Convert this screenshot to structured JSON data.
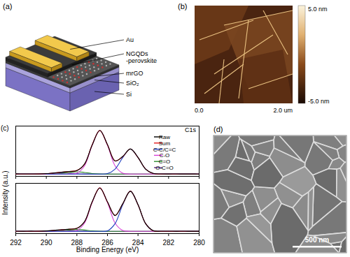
{
  "panel_labels": [
    "(a)",
    "(b)",
    "(c)",
    "(d)"
  ],
  "schematic": {
    "electrode": "Au",
    "film": [
      "NGQDs",
      "-perovskite"
    ],
    "channel": "mrGO",
    "oxide": "SiO₂",
    "substrate": "Si"
  },
  "afm_image": {
    "colorbar_top": "5.0 nm",
    "colorbar_bottom": "-5.0 nm",
    "axis_start": "0.0",
    "axis_end": "2.0 um"
  },
  "sem_image": {
    "scale_bar": "500 nm"
  },
  "xps": {
    "ylabel": "Intensity (a.u.)"
  },
  "chart_data": [
    {
      "type": "line",
      "annotation": "C1s",
      "x": [
        292,
        291.5,
        291,
        290.5,
        290,
        289.5,
        289,
        288.5,
        288,
        287.5,
        287,
        286.5,
        286,
        285.5,
        285,
        284.5,
        284,
        283.5,
        283,
        282.5,
        282,
        281.5,
        281,
        280.5,
        280
      ],
      "xlim": [
        292,
        280
      ],
      "xticks": [
        292,
        290,
        288,
        286,
        284,
        282,
        280
      ],
      "ylim": [
        -0.05,
        1.05
      ],
      "tick_labels": false,
      "legend": "top-right",
      "series": [
        {
          "name": "Raw",
          "color": "#000000",
          "values": [
            0.005,
            0.003,
            0.004,
            0.004,
            0.01,
            0.025,
            0.04,
            0.058,
            0.075,
            0.22,
            0.635,
            0.955,
            0.645,
            0.285,
            0.385,
            0.548,
            0.365,
            0.105,
            0.015,
            0.004,
            0.002,
            0.003,
            0.001,
            0.002,
            0.0
          ]
        },
        {
          "name": "Sum",
          "color": "#e41a1c",
          "values": [
            0,
            0,
            0,
            0.001,
            0.008,
            0.022,
            0.042,
            0.055,
            0.078,
            0.216,
            0.642,
            0.952,
            0.64,
            0.29,
            0.38,
            0.55,
            0.36,
            0.11,
            0.01,
            0,
            0,
            0,
            0,
            0,
            0
          ]
        },
        {
          "name": "C-C/C=C",
          "color": "#1f3fbf",
          "values": [
            0,
            0,
            0,
            0,
            0,
            0,
            0,
            0,
            0,
            0,
            0,
            0,
            0.01,
            0.11,
            0.36,
            0.55,
            0.36,
            0.11,
            0.01,
            0,
            0,
            0,
            0,
            0,
            0
          ]
        },
        {
          "name": "C-O",
          "color": "#d63fd6",
          "values": [
            0,
            0,
            0,
            0,
            0,
            0,
            0,
            0,
            0.02,
            0.18,
            0.63,
            0.95,
            0.63,
            0.18,
            0.02,
            0,
            0,
            0,
            0,
            0,
            0,
            0,
            0,
            0,
            0
          ]
        },
        {
          "name": "C=O",
          "color": "#2e8b2e",
          "values": [
            0,
            0,
            0,
            0,
            0,
            0.002,
            0.012,
            0.035,
            0.05,
            0.035,
            0.012,
            0.002,
            0,
            0,
            0,
            0,
            0,
            0,
            0,
            0,
            0,
            0,
            0,
            0,
            0
          ]
        },
        {
          "name": "O-C=O",
          "color": "#5b2c8f",
          "values": [
            0,
            0,
            0,
            0.001,
            0.008,
            0.02,
            0.03,
            0.02,
            0.008,
            0.001,
            0,
            0,
            0,
            0,
            0,
            0,
            0,
            0,
            0,
            0,
            0,
            0,
            0,
            0,
            0
          ]
        }
      ]
    },
    {
      "type": "line",
      "xlabel": "Binding Energy (eV)",
      "x": [
        292,
        291.5,
        291,
        290.5,
        290,
        289.5,
        289,
        288.5,
        288,
        287.5,
        287,
        286.5,
        286,
        285.5,
        285,
        284.5,
        284,
        283.5,
        283,
        282.5,
        282,
        281.5,
        281,
        280.5,
        280
      ],
      "xlim": [
        292,
        280
      ],
      "xticks": [
        292,
        290,
        288,
        286,
        284,
        282,
        280
      ],
      "ylim": [
        -0.05,
        1.05
      ],
      "tick_labels": "x",
      "series": [
        {
          "name": "Raw",
          "color": "#000000",
          "values": [
            0.004,
            0.002,
            0.005,
            0.003,
            0.009,
            0.021,
            0.037,
            0.047,
            0.064,
            0.212,
            0.645,
            0.948,
            0.646,
            0.345,
            0.605,
            0.876,
            0.585,
            0.165,
            0.014,
            0.003,
            0.004,
            0.002,
            0.003,
            0.001,
            0.002
          ]
        },
        {
          "name": "Sum",
          "color": "#e41a1c",
          "values": [
            0,
            0,
            0,
            0.001,
            0.007,
            0.019,
            0.035,
            0.045,
            0.067,
            0.209,
            0.64,
            0.952,
            0.64,
            0.35,
            0.6,
            0.88,
            0.58,
            0.17,
            0.01,
            0,
            0,
            0,
            0,
            0,
            0
          ]
        },
        {
          "name": "C-C/C=C",
          "color": "#1f3fbf",
          "values": [
            0,
            0,
            0,
            0,
            0,
            0,
            0,
            0,
            0,
            0,
            0,
            0,
            0.01,
            0.17,
            0.58,
            0.88,
            0.58,
            0.17,
            0.01,
            0,
            0,
            0,
            0,
            0,
            0
          ]
        },
        {
          "name": "C-O",
          "color": "#d63fd6",
          "values": [
            0,
            0,
            0,
            0,
            0,
            0,
            0,
            0,
            0.02,
            0.18,
            0.63,
            0.95,
            0.63,
            0.18,
            0.02,
            0,
            0,
            0,
            0,
            0,
            0,
            0,
            0,
            0,
            0
          ]
        },
        {
          "name": "C=O",
          "color": "#2e8b2e",
          "values": [
            0,
            0,
            0,
            0,
            0,
            0.002,
            0.01,
            0.028,
            0.04,
            0.028,
            0.01,
            0.002,
            0,
            0,
            0,
            0,
            0,
            0,
            0,
            0,
            0,
            0,
            0,
            0,
            0
          ]
        },
        {
          "name": "O-C=O",
          "color": "#5b2c8f",
          "values": [
            0,
            0,
            0,
            0.001,
            0.007,
            0.017,
            0.025,
            0.017,
            0.007,
            0.001,
            0,
            0,
            0,
            0,
            0,
            0,
            0,
            0,
            0,
            0,
            0,
            0,
            0,
            0,
            0
          ]
        }
      ]
    }
  ]
}
